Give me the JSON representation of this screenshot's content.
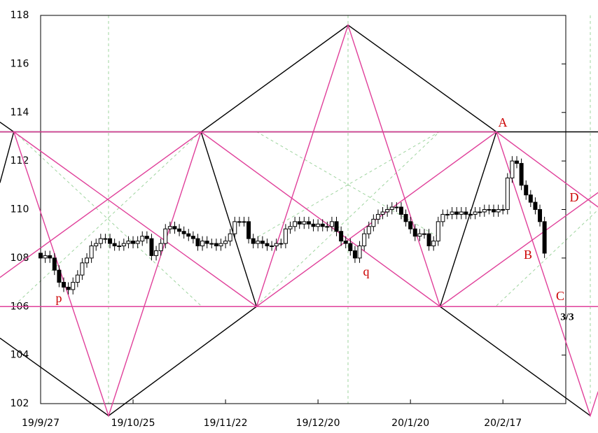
{
  "chart_data": {
    "type": "candlestick",
    "xlim": [
      0,
      113.6
    ],
    "xticks": [
      {
        "value": 0,
        "label": "19/9/27"
      },
      {
        "value": 20,
        "label": "19/10/25"
      },
      {
        "value": 40,
        "label": "19/11/22"
      },
      {
        "value": 60,
        "label": "19/12/20"
      },
      {
        "value": 80,
        "label": "20/1/20"
      },
      {
        "value": 100,
        "label": "20/2/17"
      }
    ],
    "ylim": [
      102,
      118
    ],
    "yticks": [
      102,
      104,
      106,
      108,
      110,
      112,
      114,
      116,
      118
    ],
    "up_color": "#ffffff",
    "down_color": "#000000",
    "open": [
      108.2,
      108.0,
      108.1,
      108.0,
      107.5,
      107.0,
      106.8,
      106.7,
      107.0,
      107.3,
      107.8,
      108.0,
      108.5,
      108.6,
      108.8,
      108.8,
      108.6,
      108.5,
      108.5,
      108.6,
      108.7,
      108.6,
      108.7,
      108.9,
      108.8,
      108.1,
      108.3,
      108.6,
      109.2,
      109.3,
      109.2,
      109.1,
      109.0,
      108.9,
      108.8,
      108.5,
      108.7,
      108.6,
      108.6,
      108.5,
      108.6,
      108.7,
      109.0,
      109.5,
      109.5,
      109.5,
      108.8,
      108.6,
      108.7,
      108.6,
      108.5,
      108.5,
      108.6,
      108.6,
      109.2,
      109.3,
      109.5,
      109.4,
      109.5,
      109.4,
      109.3,
      109.4,
      109.3,
      109.3,
      109.5,
      109.1,
      108.7,
      108.6,
      108.3,
      108.0,
      108.5,
      109.0,
      109.3,
      109.6,
      109.8,
      109.9,
      110.0,
      110.1,
      110.1,
      109.8,
      109.5,
      109.2,
      108.9,
      109.0,
      109.0,
      108.5,
      108.7,
      109.5,
      109.8,
      109.8,
      109.9,
      109.8,
      109.9,
      109.8,
      109.8,
      109.9,
      109.9,
      110.0,
      110.0,
      109.9,
      110.0,
      110.0,
      111.3,
      112.0,
      111.9,
      111.0,
      110.6,
      110.3,
      110.0,
      109.5
    ],
    "high": [
      108.4,
      108.3,
      108.3,
      108.2,
      107.7,
      107.2,
      107.0,
      107.2,
      107.5,
      108.0,
      108.2,
      108.7,
      108.8,
      109.0,
      109.0,
      109.0,
      108.8,
      108.7,
      108.8,
      108.9,
      108.9,
      108.9,
      109.1,
      109.1,
      109.0,
      108.5,
      108.8,
      109.4,
      109.5,
      109.5,
      109.4,
      109.3,
      109.2,
      109.1,
      109.0,
      108.9,
      108.9,
      108.8,
      108.8,
      108.8,
      108.9,
      109.2,
      109.7,
      109.7,
      109.7,
      109.7,
      109.0,
      108.9,
      108.9,
      108.8,
      108.7,
      108.8,
      108.8,
      109.4,
      109.5,
      109.7,
      109.7,
      109.7,
      109.7,
      109.6,
      109.6,
      109.6,
      109.5,
      109.7,
      109.7,
      109.3,
      108.9,
      108.8,
      108.5,
      108.7,
      109.2,
      109.5,
      109.8,
      110.0,
      110.1,
      110.2,
      110.3,
      110.3,
      110.3,
      110.0,
      109.7,
      109.4,
      109.2,
      109.2,
      109.2,
      108.9,
      109.7,
      110.0,
      110.0,
      110.1,
      110.1,
      110.1,
      110.1,
      110.0,
      110.1,
      110.1,
      110.2,
      110.2,
      110.2,
      110.2,
      110.2,
      111.5,
      112.2,
      112.2,
      112.1,
      111.2,
      110.8,
      110.5,
      110.2,
      109.7
    ],
    "low": [
      107.8,
      107.8,
      107.8,
      107.3,
      106.8,
      106.6,
      106.5,
      106.5,
      106.8,
      107.1,
      107.6,
      107.8,
      108.3,
      108.4,
      108.6,
      108.4,
      108.3,
      108.3,
      108.3,
      108.4,
      108.4,
      108.4,
      108.5,
      108.6,
      107.9,
      107.9,
      108.1,
      108.4,
      109.0,
      109.0,
      108.9,
      108.8,
      108.7,
      108.6,
      108.3,
      108.3,
      108.4,
      108.4,
      108.3,
      108.3,
      108.4,
      108.5,
      108.8,
      109.3,
      109.3,
      108.6,
      108.4,
      108.4,
      108.4,
      108.3,
      108.3,
      108.3,
      108.4,
      108.4,
      109.0,
      109.1,
      109.2,
      109.2,
      109.2,
      109.1,
      109.1,
      109.1,
      109.1,
      109.1,
      108.9,
      108.5,
      108.4,
      108.1,
      107.8,
      107.8,
      108.3,
      108.8,
      109.1,
      109.4,
      109.6,
      109.7,
      109.8,
      109.9,
      109.6,
      109.3,
      109.0,
      108.7,
      108.7,
      108.8,
      108.3,
      108.3,
      108.5,
      109.3,
      109.6,
      109.6,
      109.6,
      109.6,
      109.6,
      109.6,
      109.6,
      109.7,
      109.7,
      109.8,
      109.7,
      109.7,
      109.8,
      109.8,
      111.1,
      111.7,
      110.8,
      110.4,
      110.1,
      109.8,
      109.3,
      108.0
    ],
    "close": [
      108.0,
      108.1,
      108.0,
      107.5,
      107.0,
      106.8,
      106.7,
      107.0,
      107.3,
      107.8,
      108.0,
      108.5,
      108.6,
      108.8,
      108.8,
      108.6,
      108.5,
      108.5,
      108.6,
      108.7,
      108.6,
      108.7,
      108.9,
      108.8,
      108.1,
      108.3,
      108.6,
      109.2,
      109.3,
      109.2,
      109.1,
      109.0,
      108.9,
      108.8,
      108.5,
      108.7,
      108.6,
      108.6,
      108.5,
      108.6,
      108.7,
      109.0,
      109.5,
      109.5,
      109.5,
      108.8,
      108.6,
      108.7,
      108.6,
      108.5,
      108.5,
      108.6,
      108.6,
      109.2,
      109.3,
      109.5,
      109.4,
      109.5,
      109.4,
      109.3,
      109.4,
      109.3,
      109.3,
      109.5,
      109.1,
      108.7,
      108.6,
      108.3,
      108.0,
      108.5,
      109.0,
      109.3,
      109.6,
      109.8,
      109.9,
      110.0,
      110.1,
      110.1,
      109.8,
      109.5,
      109.2,
      108.9,
      109.0,
      109.0,
      108.5,
      108.7,
      109.5,
      109.8,
      109.8,
      109.9,
      109.8,
      109.9,
      109.8,
      109.8,
      109.9,
      109.9,
      110.0,
      110.0,
      109.9,
      110.0,
      110.0,
      111.3,
      112.0,
      111.9,
      111.0,
      110.6,
      110.3,
      110.0,
      109.5,
      108.2
    ],
    "lines": [
      {
        "color": "#000000",
        "points": [
          [
            -8.8,
            113.6
          ],
          [
            -5.8,
            113.2
          ],
          [
            -8.8,
            111.1
          ]
        ]
      },
      {
        "color": "#000000",
        "points": [
          [
            -8.8,
            104.7
          ],
          [
            14.7,
            101.5
          ],
          [
            46.7,
            106
          ],
          [
            34.7,
            113.2
          ],
          [
            66.5,
            117.6
          ],
          [
            98.6,
            113.2
          ],
          [
            86.4,
            106
          ],
          [
            118.9,
            101.5
          ]
        ]
      },
      {
        "color": "#000000",
        "points": [
          [
            46.7,
            106
          ],
          [
            86.4,
            106
          ]
        ]
      },
      {
        "color": "#000000",
        "points": [
          [
            -8.8,
            113.2
          ],
          [
            120.6,
            113.2
          ]
        ]
      },
      {
        "color": "#e0409a",
        "points": [
          [
            -8.8,
            113.2
          ],
          [
            98.6,
            113.2
          ]
        ]
      },
      {
        "color": "#e0409a",
        "points": [
          [
            -8.8,
            106
          ],
          [
            120.6,
            106
          ]
        ]
      },
      {
        "color": "#e0409a",
        "points": [
          [
            -5.8,
            113.2
          ],
          [
            14.7,
            101.5
          ],
          [
            34.7,
            113.2
          ]
        ]
      },
      {
        "color": "#e0409a",
        "points": [
          [
            -5.8,
            113.2
          ],
          [
            46.7,
            106
          ],
          [
            66.5,
            117.6
          ],
          [
            86.4,
            106
          ]
        ]
      },
      {
        "color": "#e0409a",
        "points": [
          [
            -8.8,
            107.2
          ],
          [
            34.7,
            113.2
          ],
          [
            86.4,
            106
          ],
          [
            120.6,
            110.7
          ]
        ]
      },
      {
        "color": "#e0409a",
        "points": [
          [
            46.7,
            106
          ],
          [
            98.6,
            113.2
          ],
          [
            120.6,
            110.1
          ]
        ]
      },
      {
        "color": "#e0409a",
        "points": [
          [
            98.6,
            113.2
          ],
          [
            118.9,
            101.5
          ],
          [
            120.6,
            102.5
          ]
        ]
      }
    ],
    "annotations": [
      {
        "text": "A",
        "color": "#cc0000"
      },
      {
        "text": "B",
        "color": "#cc0000"
      },
      {
        "text": "C",
        "color": "#cc0000"
      },
      {
        "text": "D",
        "color": "#cc0000"
      },
      {
        "text": "p",
        "color": "#cc0000"
      },
      {
        "text": "q",
        "color": "#cc0000"
      },
      {
        "text": "3/3",
        "color": "#000000"
      }
    ]
  }
}
